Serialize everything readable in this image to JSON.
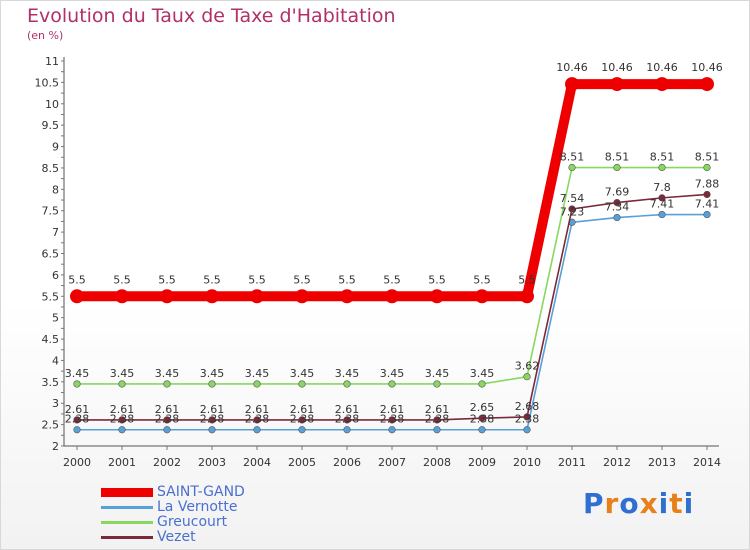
{
  "title": "Evolution du Taux de Taxe d'Habitation",
  "unit_label": "(en %)",
  "logo": {
    "text": "Proxiti",
    "colors": [
      "#2f6fcf",
      "#e8801a",
      "#2f6fcf",
      "#e8801a",
      "#2f6fcf",
      "#e8801a",
      "#2f6fcf"
    ]
  },
  "chart_data": {
    "type": "line",
    "categories": [
      "2000",
      "2001",
      "2002",
      "2003",
      "2004",
      "2005",
      "2006",
      "2007",
      "2008",
      "2009",
      "2010",
      "2011",
      "2012",
      "2013",
      "2014"
    ],
    "ylim": [
      2,
      11
    ],
    "yticks": [
      "2",
      "2.5",
      "3",
      "3.5",
      "4",
      "4.5",
      "5",
      "5.5",
      "6",
      "6.5",
      "7",
      "7.5",
      "8",
      "8.5",
      "9",
      "9.5",
      "10",
      "10.5",
      "11"
    ],
    "grid": false,
    "legend_position": "bottom-left",
    "series": [
      {
        "name": "SAINT-GAND",
        "color": "#ee0000",
        "thick": true,
        "values": [
          5.5,
          5.5,
          5.5,
          5.5,
          5.5,
          5.5,
          5.5,
          5.5,
          5.5,
          5.5,
          5.5,
          10.46,
          10.46,
          10.46,
          10.46
        ],
        "labels": [
          "5.5",
          "5.5",
          "5.5",
          "5.5",
          "5.5",
          "5.5",
          "5.5",
          "5.5",
          "5.5",
          "5.5",
          "5.5",
          "10.46",
          "10.46",
          "10.46",
          "10.46"
        ]
      },
      {
        "name": "La Vernotte",
        "color": "#5aa0d8",
        "thick": false,
        "values": [
          2.38,
          2.38,
          2.38,
          2.38,
          2.38,
          2.38,
          2.38,
          2.38,
          2.38,
          2.38,
          2.38,
          7.23,
          7.34,
          7.41,
          7.41
        ],
        "labels": [
          "2.38",
          "2.38",
          "2.38",
          "2.38",
          "2.38",
          "2.38",
          "2.38",
          "2.38",
          "2.38",
          "2.38",
          "2.38",
          "7.23",
          "7.34",
          "7.41",
          "7.41"
        ]
      },
      {
        "name": "Greucourt",
        "color": "#88d860",
        "thick": false,
        "values": [
          3.45,
          3.45,
          3.45,
          3.45,
          3.45,
          3.45,
          3.45,
          3.45,
          3.45,
          3.45,
          3.62,
          8.51,
          8.51,
          8.51,
          8.51
        ],
        "labels": [
          "3.45",
          "3.45",
          "3.45",
          "3.45",
          "3.45",
          "3.45",
          "3.45",
          "3.45",
          "3.45",
          "3.45",
          "3.62",
          "8.51",
          "8.51",
          "8.51",
          "8.51"
        ]
      },
      {
        "name": "Vezet",
        "color": "#7a2a3a",
        "thick": false,
        "values": [
          2.61,
          2.61,
          2.61,
          2.61,
          2.61,
          2.61,
          2.61,
          2.61,
          2.61,
          2.65,
          2.68,
          7.54,
          7.69,
          7.8,
          7.88
        ],
        "labels": [
          "2.61",
          "2.61",
          "2.61",
          "2.61",
          "2.61",
          "2.61",
          "2.61",
          "2.61",
          "2.61",
          "2.65",
          "2.68",
          "7.54",
          "7.69",
          "7.8",
          "7.88"
        ]
      }
    ]
  }
}
